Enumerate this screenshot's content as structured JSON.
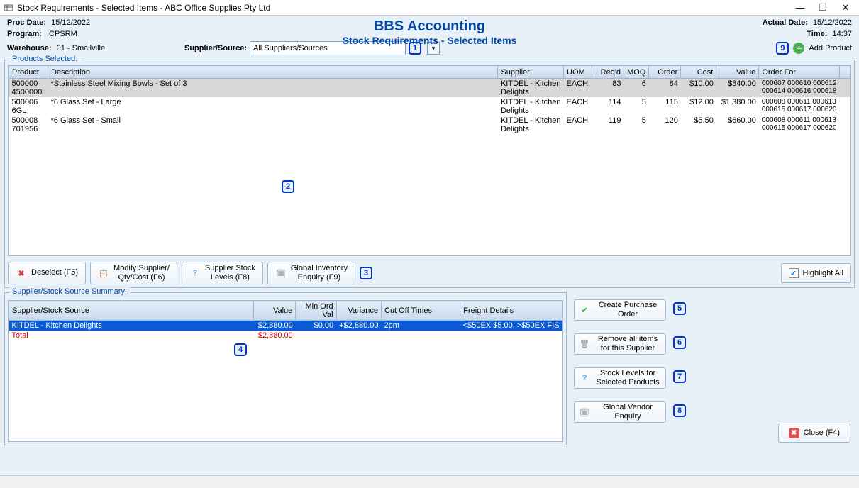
{
  "window": {
    "title": "Stock Requirements - Selected Items - ABC Office Supplies Pty Ltd"
  },
  "header": {
    "proc_date_label": "Proc Date:",
    "proc_date": "15/12/2022",
    "program_label": "Program:",
    "program": "ICPSRM",
    "app_title": "BBS Accounting",
    "app_subtitle": "Stock Requirements - Selected Items",
    "actual_date_label": "Actual Date:",
    "actual_date": "15/12/2022",
    "time_label": "Time:",
    "time": "14:37",
    "warehouse_label": "Warehouse:",
    "warehouse": "01 - Smallville",
    "supplier_label": "Supplier/Source:",
    "supplier_value": "All Suppliers/Sources",
    "add_product_label": "Add Product"
  },
  "badges": {
    "b1": "1",
    "b2": "2",
    "b3": "3",
    "b4": "4",
    "b5": "5",
    "b6": "6",
    "b7": "7",
    "b8": "8",
    "b9": "9"
  },
  "products_section": {
    "legend": "Products Selected:",
    "columns": {
      "product": "Product",
      "description": "Description",
      "supplier": "Supplier",
      "uom": "UOM",
      "reqd": "Req'd",
      "moq": "MOQ",
      "order": "Order",
      "cost": "Cost",
      "value": "Value",
      "order_for": "Order For"
    },
    "rows": [
      {
        "product": "500000 4500000",
        "description": "*Stainless Steel Mixing Bowls - Set of 3",
        "supplier": "KITDEL - Kitchen Delights",
        "uom": "EACH",
        "reqd": "83",
        "moq": "6",
        "order": "84",
        "cost": "$10.00",
        "value": "$840.00",
        "order_for": "000607 000610 000612 000614 000616 000618",
        "selected": true
      },
      {
        "product": "500006 6GL",
        "description": "*6 Glass Set - Large",
        "supplier": "KITDEL - Kitchen Delights",
        "uom": "EACH",
        "reqd": "114",
        "moq": "5",
        "order": "115",
        "cost": "$12.00",
        "value": "$1,380.00",
        "order_for": "000608 000611 000613 000615 000617 000620",
        "selected": false
      },
      {
        "product": "500008 701956",
        "description": "*6 Glass Set - Small",
        "supplier": "KITDEL - Kitchen Delights",
        "uom": "EACH",
        "reqd": "119",
        "moq": "5",
        "order": "120",
        "cost": "$5.50",
        "value": "$660.00",
        "order_for": "000608 000611 000613 000615 000617 000620",
        "selected": false
      }
    ],
    "col_widths": {
      "product": 55,
      "description": 685,
      "supplier": 75,
      "uom": 35,
      "reqd": 40,
      "moq": 30,
      "order": 40,
      "cost": 45,
      "value": 55,
      "order_for": 120
    }
  },
  "product_buttons": {
    "deselect": "Deselect (F5)",
    "modify": "Modify Supplier/\nQty/Cost (F6)",
    "stock_levels": "Supplier Stock\nLevels (F8)",
    "global_inv": "Global Inventory\nEnquiry (F9)",
    "highlight_all": "Highlight All"
  },
  "supplier_section": {
    "legend": "Supplier/Stock Source Summary:",
    "columns": {
      "source": "Supplier/Stock Source",
      "value": "Value",
      "min_ord": "Min Ord Val",
      "variance": "Variance",
      "cut_off": "Cut Off Times",
      "freight": "Freight Details"
    },
    "rows": [
      {
        "source": "KITDEL - Kitchen Delights",
        "value": "$2,880.00",
        "min_ord": "$0.00",
        "variance": "+$2,880.00",
        "cut_off": "2pm",
        "freight": "<$50EX $5.00, >$50EX FIS",
        "highlighted": true
      }
    ],
    "total_label": "Total",
    "total_value": "$2,880.00",
    "col_widths": {
      "source": 370,
      "value": 60,
      "min_ord": 60,
      "variance": 60,
      "cut_off": 120,
      "freight": 120
    }
  },
  "side_buttons": {
    "create_po": "Create Purchase\nOrder",
    "remove_items": "Remove all items\nfor this Supplier",
    "stock_levels_sel": "Stock Levels for\nSelected Products",
    "global_vendor": "Global Vendor\nEnquiry"
  },
  "close_button": "Close (F4)",
  "colors": {
    "accent": "#0047a2",
    "badge_border": "#0033cc",
    "row_highlight": "#0a5cd6",
    "selected_row": "#d8d8d8",
    "total_color": "#cc0000",
    "header_grad_top": "#e4edf8",
    "header_grad_bot": "#c8d8ec",
    "body_bg": "#e8f0f8"
  }
}
